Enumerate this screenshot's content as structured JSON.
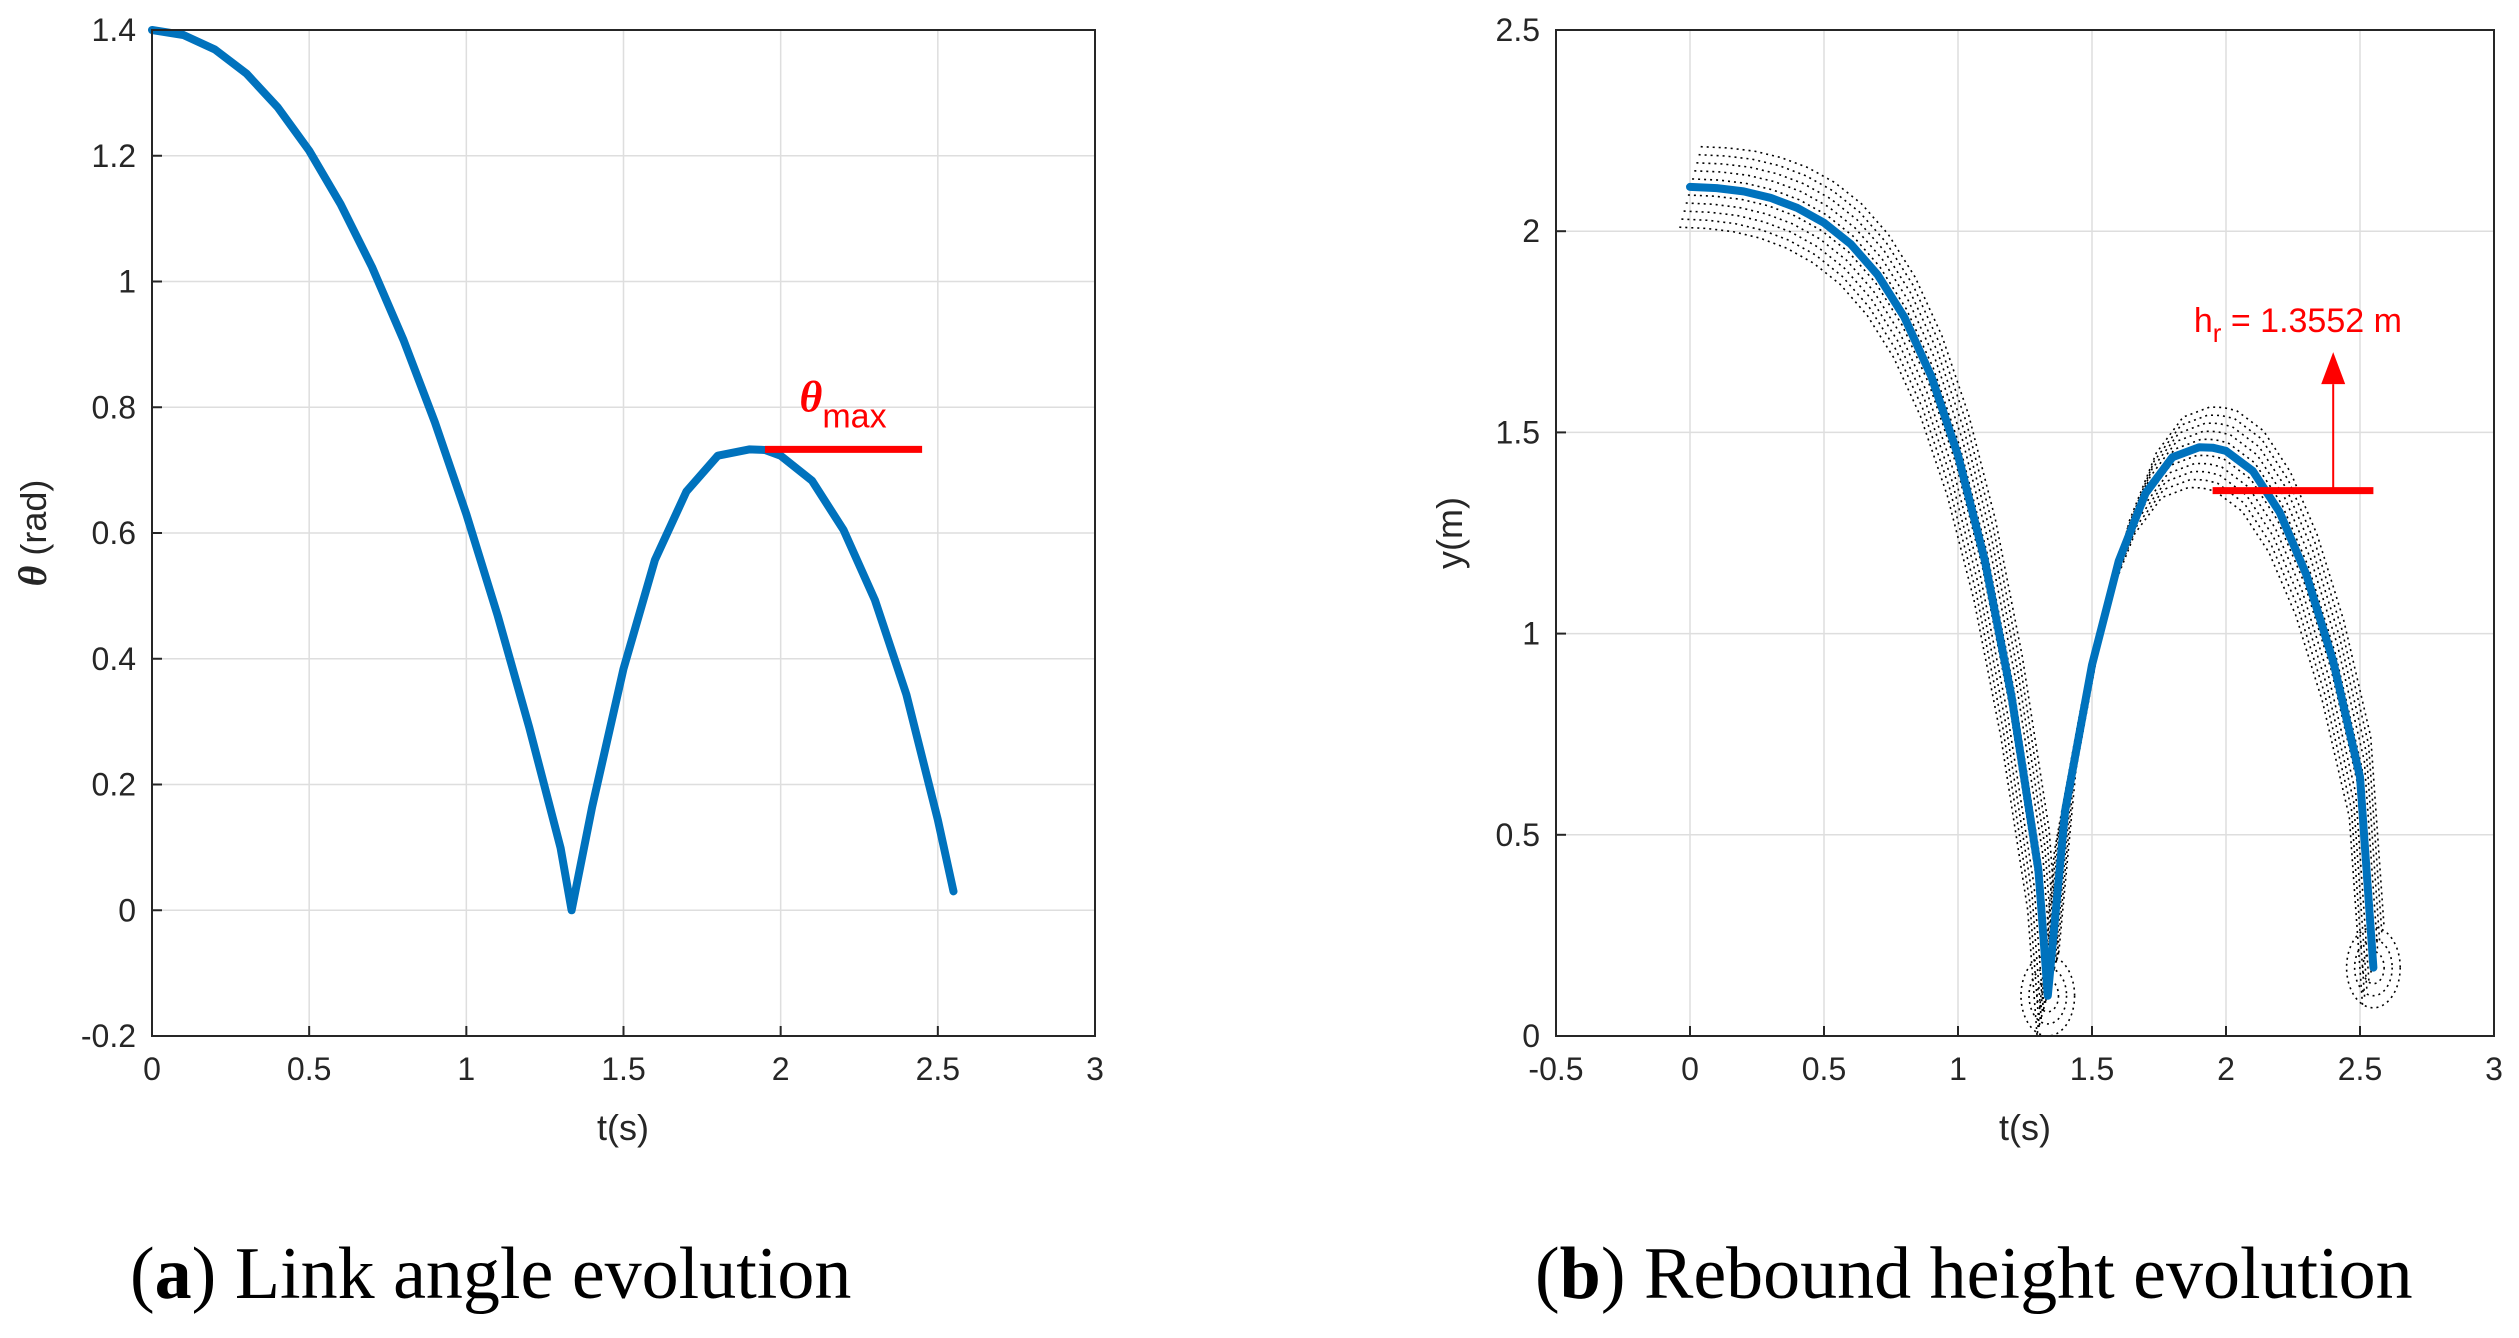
{
  "chart_data": [
    {
      "type": "line",
      "caption_letter": "a",
      "caption_text": "Link angle evolution",
      "xlabel": "t(s)",
      "ylabel_symbol": "θ",
      "ylabel_unit": "(rad)",
      "xlim": [
        0,
        3
      ],
      "ylim": [
        -0.2,
        1.4
      ],
      "xticks": [
        0,
        0.5,
        1,
        1.5,
        2,
        2.5,
        3
      ],
      "yticks": [
        -0.2,
        0,
        0.2,
        0.4,
        0.6,
        0.8,
        1,
        1.2,
        1.4
      ],
      "grid": true,
      "series": [
        {
          "name": "theta",
          "color": "#0072bd",
          "x": [
            0,
            0.1,
            0.2,
            0.3,
            0.4,
            0.5,
            0.6,
            0.7,
            0.8,
            0.9,
            1.0,
            1.1,
            1.2,
            1.3,
            1.335,
            1.4,
            1.5,
            1.6,
            1.7,
            1.8,
            1.9,
            1.95,
            2.0,
            2.1,
            2.2,
            2.3,
            2.4,
            2.5,
            2.55
          ],
          "y": [
            1.4,
            1.392,
            1.369,
            1.331,
            1.277,
            1.208,
            1.123,
            1.023,
            0.907,
            0.776,
            0.63,
            0.468,
            0.291,
            0.099,
            0.0,
            0.164,
            0.384,
            0.557,
            0.666,
            0.723,
            0.733,
            0.732,
            0.723,
            0.683,
            0.605,
            0.493,
            0.343,
            0.144,
            0.03
          ]
        }
      ],
      "annotation": {
        "label_symbol": "θ",
        "label_sub": "max",
        "value": 0.733,
        "x_from": 1.95,
        "x_to": 2.45,
        "color": "#ff0000"
      }
    },
    {
      "type": "line",
      "caption_letter": "b",
      "caption_text": "Rebound height evolution",
      "xlabel": "t(s)",
      "ylabel": "y(m)",
      "xlim": [
        -0.5,
        3
      ],
      "ylim": [
        0,
        2.5
      ],
      "xticks": [
        -0.5,
        0,
        0.5,
        1,
        1.5,
        2,
        2.5,
        3
      ],
      "yticks": [
        0,
        0.5,
        1,
        1.5,
        2,
        2.5
      ],
      "grid": true,
      "series": [
        {
          "name": "center trajectory",
          "color": "#0072bd",
          "x": [
            0,
            0.1,
            0.2,
            0.3,
            0.4,
            0.5,
            0.6,
            0.7,
            0.8,
            0.9,
            1.0,
            1.1,
            1.2,
            1.3,
            1.335,
            1.4,
            1.5,
            1.6,
            1.7,
            1.8,
            1.9,
            1.95,
            2.0,
            2.1,
            2.2,
            2.3,
            2.4,
            2.5,
            2.55
          ],
          "y": [
            2.11,
            2.107,
            2.099,
            2.083,
            2.058,
            2.021,
            1.968,
            1.892,
            1.786,
            1.64,
            1.443,
            1.182,
            0.843,
            0.413,
            0.1,
            0.561,
            0.922,
            1.181,
            1.349,
            1.438,
            1.463,
            1.462,
            1.454,
            1.404,
            1.302,
            1.146,
            0.931,
            0.644,
            0.17
          ]
        }
      ],
      "dotted_envelope": {
        "color": "#000000",
        "description": "dotted black curves around the blue trajectory"
      },
      "annotation": {
        "label_main": "h",
        "label_sub": "r",
        "label_rest": " = 1.3552 m",
        "value": 1.3552,
        "x_from": 1.95,
        "x_to": 2.55,
        "arrow_x": 2.4,
        "color": "#ff0000"
      }
    }
  ]
}
